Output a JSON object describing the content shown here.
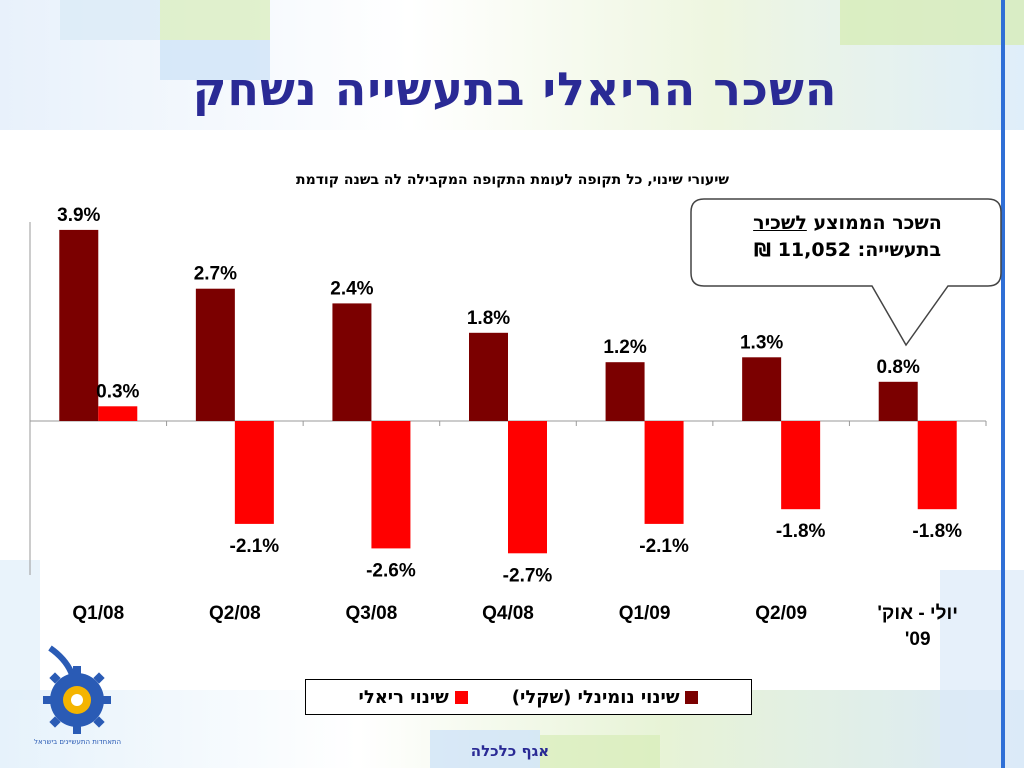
{
  "page_title": "השכר הריאלי בתעשייה נשחק",
  "footer_text": "אגף כלכלה",
  "logo": {
    "icon": "gear-logo-icon",
    "text": "התאחדות התעשיינים בישראל"
  },
  "callout": {
    "line1_prefix": "השכר הממוצע ",
    "line1_underlined": "לשכיר",
    "line2": "בתעשייה: 11,052 ₪"
  },
  "colors": {
    "title": "#2a2a95",
    "nominal": "#7b0000",
    "real": "#ff0000",
    "accent_blue": "#2f6fd6"
  },
  "chart_data": {
    "type": "bar",
    "title": "שיעורי שינוי, כל תקופה לעומת התקופה המקבילה לה בשנה קודמת",
    "categories": [
      "Q1/08",
      "Q2/08",
      "Q3/08",
      "Q4/08",
      "Q1/09",
      "Q2/09",
      "יולי - אוק' 09'"
    ],
    "category_labels": [
      [
        "Q1/08"
      ],
      [
        "Q2/08"
      ],
      [
        "Q3/08"
      ],
      [
        "Q4/08"
      ],
      [
        "Q1/09"
      ],
      [
        "Q2/09"
      ],
      [
        "יולי - אוק'",
        "09'"
      ]
    ],
    "series": [
      {
        "name": "שינוי נומינלי (שקלי)",
        "color": "#7b0000",
        "values": [
          3.9,
          2.7,
          2.4,
          1.8,
          1.2,
          1.3,
          0.8
        ],
        "labels": [
          "3.9%",
          "2.7%",
          "2.4%",
          "1.8%",
          "1.2%",
          "1.3%",
          "0.8%"
        ]
      },
      {
        "name": "שינוי ריאלי",
        "color": "#ff0000",
        "values": [
          0.3,
          -2.1,
          -2.6,
          -2.7,
          -2.1,
          -1.8,
          -1.8
        ],
        "labels": [
          "0.3%",
          "-2.1%",
          "-2.6%",
          "-2.7%",
          "-2.1%",
          "-1.8%",
          "-1.8%"
        ]
      }
    ],
    "ylim": [
      -3.2,
      4.2
    ],
    "grid": false,
    "legend_position": "bottom"
  }
}
